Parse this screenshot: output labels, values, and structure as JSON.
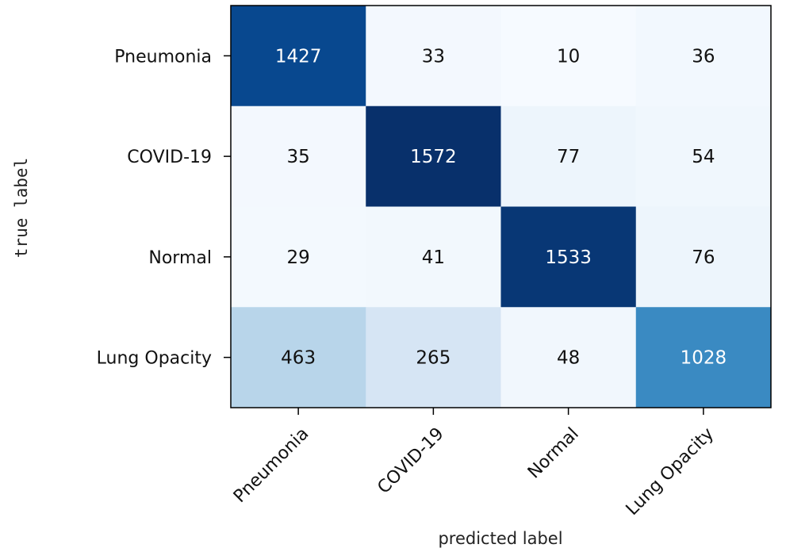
{
  "chart_data": {
    "type": "heatmap",
    "title": "",
    "xlabel": "predicted label",
    "ylabel": "true label",
    "x_categories": [
      "Pneumonia",
      "COVID-19",
      "Normal",
      "Lung Opacity"
    ],
    "y_categories": [
      "Pneumonia",
      "COVID-19",
      "Normal",
      "Lung Opacity"
    ],
    "values": [
      [
        1427,
        33,
        10,
        36
      ],
      [
        35,
        1572,
        77,
        54
      ],
      [
        29,
        41,
        1533,
        76
      ],
      [
        463,
        265,
        48,
        1028
      ]
    ],
    "colormap": "Blues",
    "value_range": [
      0,
      1572
    ],
    "colorbar": false
  }
}
